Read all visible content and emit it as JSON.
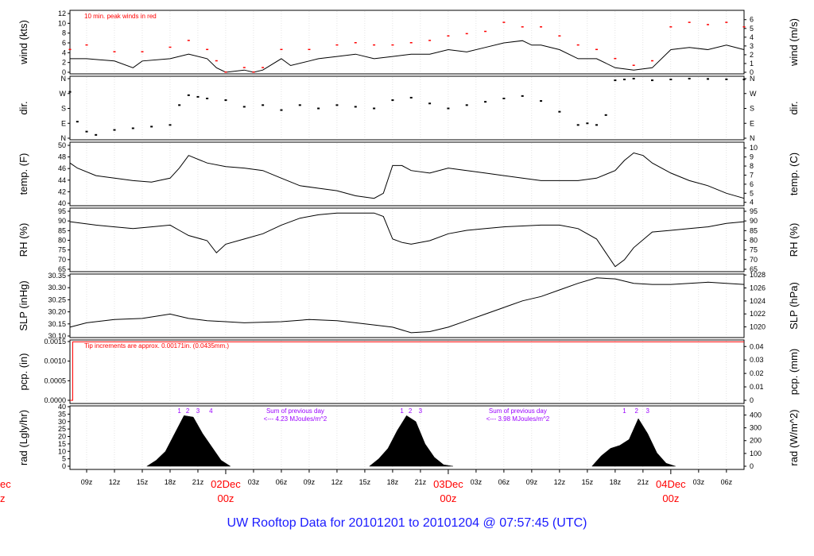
{
  "title": "UW Rooftop Data for 20101201  to  20101204 @ 07:57:45  (UTC)",
  "colors": {
    "axis": "#000000",
    "accent": "#ff0000",
    "purple": "#9a00ff",
    "grid": "#c8c8c8"
  },
  "chart_data": {
    "type": "line",
    "x": {
      "start_hour_utc": 7.2,
      "end_hour_utc": 79.9,
      "units": "hours since 2010-12-01 00z"
    },
    "time_ticks": [
      "09z",
      "12z",
      "15z",
      "18z",
      "21z",
      "03z",
      "06z",
      "09z",
      "12z",
      "15z",
      "18z",
      "21z",
      "03z",
      "06z",
      "09z",
      "12z",
      "15z",
      "18z",
      "21z",
      "03z",
      "06z"
    ],
    "day_labels": [
      {
        "date": "02Dec",
        "time": "00z"
      },
      {
        "date": "03Dec",
        "time": "00z"
      },
      {
        "date": "04Dec",
        "time": "00z"
      }
    ],
    "left_edge_label": {
      "date": "ec",
      "time": "z"
    },
    "panels": [
      {
        "id": "wind",
        "ylabel": "wind (kts)",
        "y2label": "wind (m/s)",
        "ylim": [
          0,
          13
        ],
        "y2lim": [
          0,
          6.7
        ],
        "yticks": [
          "0",
          "2",
          "4",
          "6",
          "8",
          "10",
          "12"
        ],
        "y2ticks": [
          "0",
          "1",
          "2",
          "3",
          "4",
          "5",
          "6"
        ],
        "annotation": "10 min. peak winds in red",
        "series": [
          {
            "name": "wind speed",
            "color": "#000000",
            "x": [
              7.2,
              9,
              12,
              14,
              15,
              18,
              20,
              22,
              23,
              24,
              26,
              27,
              28,
              30,
              31,
              33,
              34,
              36,
              38,
              40,
              42,
              44,
              46,
              48,
              50,
              52,
              54,
              56,
              57,
              58,
              60,
              62,
              64,
              66,
              68,
              70,
              72,
              74,
              76,
              78,
              79.9
            ],
            "y": [
              3,
              3,
              2.5,
              1,
              2.5,
              3,
              4,
              3,
              1,
              0,
              0.5,
              0,
              0.5,
              3,
              1.5,
              2.5,
              3,
              3.5,
              4,
              3,
              3.5,
              4,
              4,
              5,
              4.5,
              5.5,
              6.5,
              7,
              6,
              6,
              5,
              3,
              3,
              1,
              0.5,
              1,
              5,
              5.5,
              5,
              6,
              5
            ]
          },
          {
            "name": "10 min. peak winds",
            "color": "#ff0000",
            "x": [
              7.2,
              9,
              12,
              15,
              18,
              20,
              22,
              23,
              24,
              26,
              27,
              28,
              30,
              33,
              36,
              38,
              40,
              42,
              44,
              46,
              48,
              50,
              52,
              54,
              56,
              58,
              60,
              62,
              64,
              66,
              68,
              70,
              72,
              74,
              76,
              78,
              79.9
            ],
            "y": [
              5,
              6,
              4.5,
              4.5,
              5.5,
              7,
              5,
              2.5,
              0,
              1,
              0,
              1,
              5,
              5,
              6,
              6.5,
              6,
              6,
              6.5,
              7,
              8,
              8.5,
              9,
              11,
              10,
              10,
              8,
              6,
              5,
              3,
              1.5,
              2.5,
              10,
              11,
              10.5,
              11,
              10
            ]
          }
        ]
      },
      {
        "id": "dir",
        "ylabel": "dir.",
        "y2label": "dir.",
        "ylim": [
          0,
          360
        ],
        "yticks": [
          "N",
          "E",
          "S",
          "W",
          "N"
        ],
        "series": [
          {
            "name": "wind direction",
            "color": "#000000",
            "x": [
              7.2,
              8,
              9,
              10,
              12,
              14,
              16,
              18,
              19,
              20,
              21,
              22,
              24,
              26,
              28,
              30,
              32,
              34,
              36,
              38,
              40,
              42,
              44,
              46,
              48,
              50,
              52,
              54,
              56,
              58,
              60,
              62,
              63,
              64,
              65,
              66,
              67,
              68,
              70,
              72,
              74,
              76,
              78,
              79.9
            ],
            "y": [
              280,
              100,
              40,
              20,
              50,
              60,
              70,
              80,
              200,
              260,
              250,
              240,
              230,
              190,
              200,
              170,
              200,
              180,
              200,
              190,
              180,
              230,
              245,
              210,
              180,
              200,
              220,
              240,
              255,
              225,
              160,
              80,
              90,
              80,
              140,
              350,
              355,
              360,
              350,
              355,
              360,
              358,
              356,
              355
            ]
          }
        ]
      },
      {
        "id": "temp",
        "ylabel": "temp. (F)",
        "y2label": "temp. (C)",
        "ylim": [
          39,
          50.5
        ],
        "y2lim": [
          3.89,
          10.28
        ],
        "yticks": [
          "40",
          "42",
          "44",
          "46",
          "48",
          "50"
        ],
        "y2ticks": [
          "4",
          "5",
          "6",
          "7",
          "8",
          "9",
          "10"
        ],
        "series": [
          {
            "name": "temperature",
            "color": "#000000",
            "x": [
              7.2,
              8,
              10,
              12,
              14,
              16,
              18,
              19,
              20,
              22,
              24,
              26,
              28,
              30,
              32,
              34,
              36,
              38,
              40,
              41,
              42,
              43,
              44,
              46,
              48,
              50,
              52,
              54,
              56,
              58,
              60,
              62,
              64,
              66,
              67,
              68,
              69,
              70,
              72,
              74,
              76,
              78,
              79.9
            ],
            "y": [
              47,
              46,
              44.5,
              44,
              43.5,
              43.2,
              44,
              46,
              48.5,
              47,
              46.3,
              46,
              45.5,
              44,
              42.5,
              42,
              41.5,
              40.5,
              40,
              41,
              46.5,
              46.5,
              45.5,
              45,
              46,
              45.5,
              45,
              44.5,
              44,
              43.5,
              43.5,
              43.5,
              44,
              45.5,
              47.5,
              49,
              48.5,
              47,
              45,
              43.5,
              42.5,
              41,
              40
            ]
          }
        ]
      },
      {
        "id": "rh",
        "ylabel": "RH (%)",
        "y2label": "RH (%)",
        "ylim": [
          62.5,
          96
        ],
        "yticks": [
          "65",
          "70",
          "75",
          "80",
          "85",
          "90",
          "95"
        ],
        "series": [
          {
            "name": "relative humidity",
            "color": "#000000",
            "x": [
              7.2,
              10,
              12,
              14,
              16,
              18,
              19,
              20,
              22,
              23,
              24,
              26,
              28,
              30,
              32,
              34,
              36,
              38,
              40,
              41,
              42,
              43,
              44,
              46,
              48,
              50,
              52,
              54,
              56,
              58,
              60,
              62,
              64,
              65,
              66,
              67,
              68,
              70,
              72,
              74,
              76,
              78,
              79.9
            ],
            "y": [
              90,
              88,
              87,
              86,
              87,
              88,
              85,
              82,
              79,
              72,
              77,
              80,
              83,
              88,
              92,
              94,
              95,
              95,
              95,
              93,
              80,
              78,
              77,
              79,
              83,
              85,
              86,
              87,
              87.5,
              88,
              88,
              86,
              80,
              72,
              64,
              68,
              75,
              84,
              85,
              86,
              87,
              89,
              90
            ]
          }
        ]
      },
      {
        "id": "slp",
        "ylabel": "SLP (inHg)",
        "y2label": "SLP (hPa)",
        "ylim": [
          30.08,
          30.355
        ],
        "y2lim": [
          1018.6,
          1027.9
        ],
        "yticks": [
          "30.10",
          "30.15",
          "30.20",
          "30.25",
          "30.30",
          "30.35"
        ],
        "y2ticks": [
          "1020",
          "1022",
          "1024",
          "1026",
          "1028"
        ],
        "series": [
          {
            "name": "sea level pressure",
            "color": "#000000",
            "x": [
              7.2,
              9,
              12,
              15,
              18,
              20,
              22,
              24,
              26,
              30,
              33,
              36,
              38,
              42,
              44,
              46,
              48,
              50,
              52,
              54,
              56,
              58,
              60,
              62,
              64,
              66,
              68,
              70,
              72,
              74,
              76,
              78,
              79.9
            ],
            "y": [
              30.12,
              30.14,
              30.155,
              30.16,
              30.18,
              30.16,
              30.15,
              30.145,
              30.14,
              30.145,
              30.155,
              30.15,
              30.14,
              30.12,
              30.095,
              30.1,
              30.12,
              30.15,
              30.18,
              30.21,
              30.24,
              30.26,
              30.29,
              30.32,
              30.345,
              30.34,
              30.32,
              30.315,
              30.315,
              30.32,
              30.325,
              30.32,
              30.315
            ]
          }
        ]
      },
      {
        "id": "pcp",
        "ylabel": "pcp. (in)",
        "y2label": "pcp. (mm)",
        "ylim": [
          0,
          0.00172
        ],
        "y2lim": [
          0,
          0.0437
        ],
        "yticks": [
          "0.0000",
          "0.0005",
          "0.0010",
          "0.0015"
        ],
        "y2ticks": [
          "0",
          "0.01",
          "0.02",
          "0.03",
          "0.04"
        ],
        "annotation": "Tip increments are approx. 0.00171in. (0.0435mm.)",
        "series": [
          {
            "name": "precipitation",
            "color": "#ff0000",
            "x": [
              7.2,
              7.5,
              7.5,
              79.9
            ],
            "y": [
              0,
              0,
              0.00171,
              0.00171
            ]
          }
        ]
      },
      {
        "id": "rad",
        "ylabel": "rad (Lgly/hr)",
        "y2label": "rad (W/m^2)",
        "ylim": [
          0,
          40
        ],
        "y2lim": [
          0,
          465
        ],
        "yticks": [
          "0",
          "5",
          "10",
          "15",
          "20",
          "25",
          "30",
          "35",
          "40"
        ],
        "y2ticks": [
          "0",
          "100",
          "200",
          "300",
          "400"
        ],
        "type": "area",
        "day_sums": [
          {
            "line1": "Sum of previous day",
            "line2": "<--- 4.23 MJoules/m^2"
          },
          {
            "line1": "Sum of previous day",
            "line2": "<--- 3.98 MJoules/m^2"
          }
        ],
        "hour_marks": [
          {
            "label": "1",
            "hour": 19.0
          },
          {
            "label": "2",
            "hour": 19.9
          },
          {
            "label": "3",
            "hour": 21.0
          },
          {
            "label": "4",
            "hour": 22.4
          },
          {
            "label": "1",
            "hour": 43.0
          },
          {
            "label": "2",
            "hour": 43.9
          },
          {
            "label": "3",
            "hour": 45.0
          },
          {
            "label": "1",
            "hour": 67.0
          },
          {
            "label": "2",
            "hour": 68.3
          },
          {
            "label": "3",
            "hour": 69.5
          }
        ],
        "series": [
          {
            "name": "solar radiation",
            "color": "#000000",
            "x": [
              15.5,
              16.5,
              17.5,
              18.5,
              19.5,
              20.5,
              21.5,
              22.5,
              23.5,
              24.5,
              39.5,
              40.5,
              41.5,
              42.5,
              43.5,
              44.5,
              45.5,
              46.5,
              47.5,
              48.5,
              63.5,
              64.5,
              65.5,
              66.5,
              67.5,
              68.5,
              69.5,
              70.5,
              71.5,
              72.5
            ],
            "y": [
              0,
              4,
              10,
              22,
              34,
              33,
              22,
              13,
              4,
              0,
              0,
              5,
              12,
              24,
              34,
              30,
              15,
              6,
              1,
              0,
              0,
              7,
              12,
              14,
              18,
              32,
              22,
              9,
              2,
              0
            ]
          }
        ]
      }
    ]
  }
}
